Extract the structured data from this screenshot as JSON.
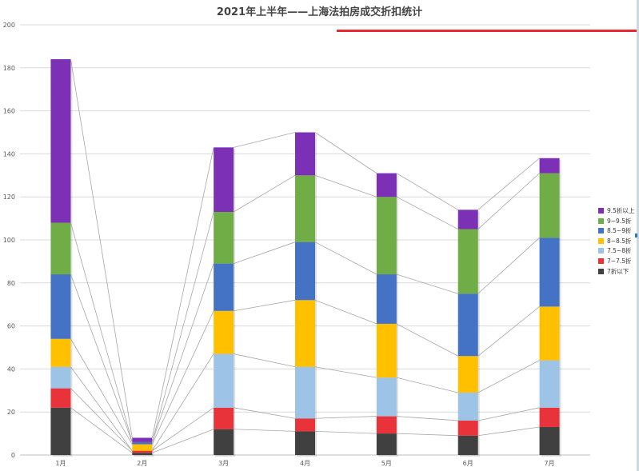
{
  "chart_data": {
    "type": "bar",
    "stacked": true,
    "title": "2021年上半年——上海法拍房成交折扣统计",
    "categories": [
      "1月",
      "2月",
      "3月",
      "4月",
      "5月",
      "6月",
      "7月"
    ],
    "ylim": [
      0,
      200
    ],
    "yticks": [
      0,
      20,
      40,
      60,
      80,
      100,
      120,
      140,
      160,
      180,
      200
    ],
    "grid": true,
    "legend_position": "right",
    "series_connector_lines": true,
    "series": [
      {
        "name": "7折以下",
        "color": "#404040",
        "values": [
          22,
          1,
          12,
          11,
          10,
          9,
          13
        ]
      },
      {
        "name": "7~7.5折",
        "color": "#e8333a",
        "values": [
          9,
          1,
          10,
          6,
          8,
          7,
          9
        ]
      },
      {
        "name": "7.5~8折",
        "color": "#9dc3e6",
        "values": [
          10,
          0,
          25,
          24,
          18,
          13,
          22
        ]
      },
      {
        "name": "8~8.5折",
        "color": "#ffc000",
        "values": [
          13,
          3,
          20,
          31,
          25,
          17,
          25
        ]
      },
      {
        "name": "8.5~9折",
        "color": "#4472c4",
        "values": [
          30,
          1,
          22,
          27,
          23,
          29,
          32
        ]
      },
      {
        "name": "9~9.5折",
        "color": "#70ad47",
        "values": [
          24,
          0,
          24,
          31,
          36,
          30,
          30
        ]
      },
      {
        "name": "9.5折以上",
        "color": "#7b30b5",
        "values": [
          76,
          2,
          30,
          20,
          11,
          9,
          7
        ]
      }
    ]
  }
}
